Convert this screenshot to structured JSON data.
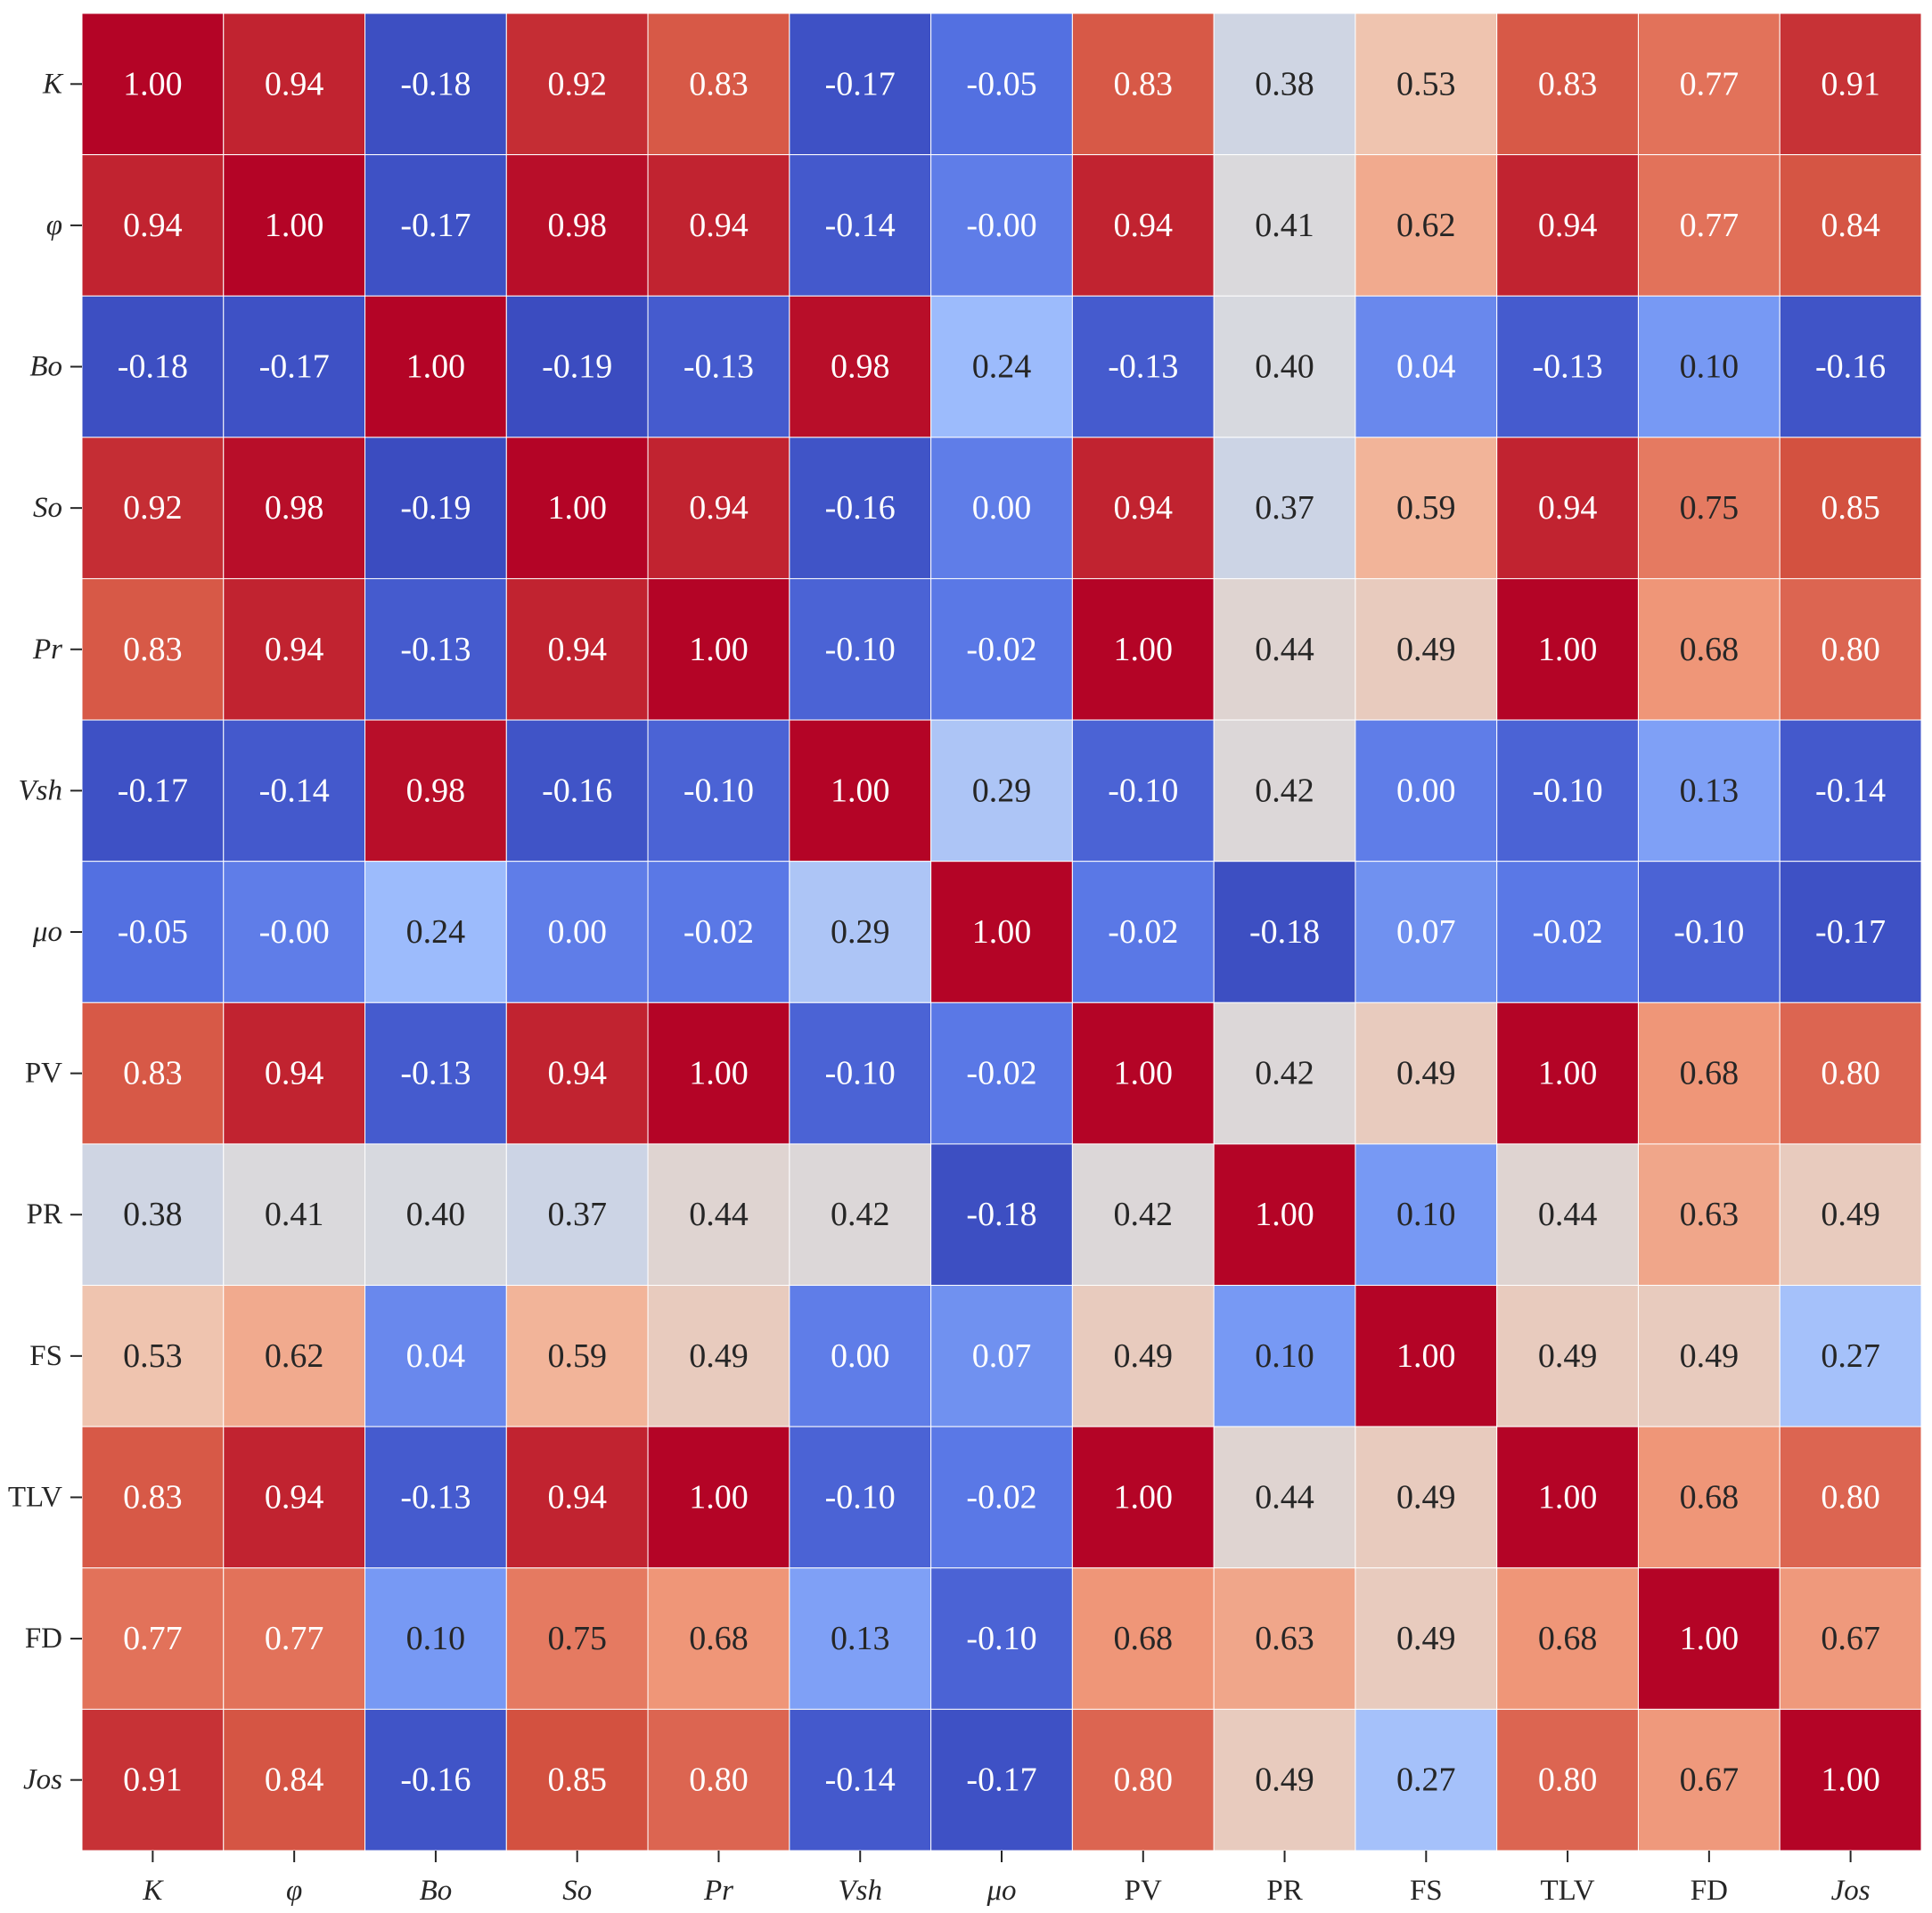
{
  "chart_data": {
    "type": "heatmap",
    "title": "",
    "xlabel": "",
    "ylabel": "",
    "colormap": "coolwarm",
    "value_range": [
      -0.19,
      1.0
    ],
    "value_format": "0.00",
    "colors": {
      "low": "#3b4cc0",
      "mid": "#dddddd",
      "high": "#b40426",
      "gridline": "#ffffff",
      "tick": "#262626",
      "text_dark": "#262626",
      "text_light": "#ffffff"
    },
    "labels": [
      {
        "text": "K",
        "italic": true
      },
      {
        "text": "φ",
        "italic": true
      },
      {
        "text": "Bo",
        "italic": true
      },
      {
        "text": "So",
        "italic": true
      },
      {
        "text": "Pr",
        "italic": true
      },
      {
        "text": "Vsh",
        "italic": true
      },
      {
        "text": "μo",
        "italic": true
      },
      {
        "text": "PV",
        "italic": false
      },
      {
        "text": "PR",
        "italic": false
      },
      {
        "text": "FS",
        "italic": false
      },
      {
        "text": "TLV",
        "italic": false
      },
      {
        "text": "FD",
        "italic": false
      },
      {
        "text": "Jos",
        "italic": true
      }
    ],
    "matrix": [
      [
        1.0,
        0.94,
        -0.18,
        0.92,
        0.83,
        -0.17,
        -0.05,
        0.83,
        0.38,
        0.53,
        0.83,
        0.77,
        0.91
      ],
      [
        0.94,
        1.0,
        -0.17,
        0.98,
        0.94,
        -0.14,
        -0.0,
        0.94,
        0.41,
        0.62,
        0.94,
        0.77,
        0.84
      ],
      [
        -0.18,
        -0.17,
        1.0,
        -0.19,
        -0.13,
        0.98,
        0.24,
        -0.13,
        0.4,
        0.04,
        -0.13,
        0.1,
        -0.16
      ],
      [
        0.92,
        0.98,
        -0.19,
        1.0,
        0.94,
        -0.16,
        0.0,
        0.94,
        0.37,
        0.59,
        0.94,
        0.75,
        0.85
      ],
      [
        0.83,
        0.94,
        -0.13,
        0.94,
        1.0,
        -0.1,
        -0.02,
        1.0,
        0.44,
        0.49,
        1.0,
        0.68,
        0.8
      ],
      [
        -0.17,
        -0.14,
        0.98,
        -0.16,
        -0.1,
        1.0,
        0.29,
        -0.1,
        0.42,
        0.0,
        -0.1,
        0.13,
        -0.14
      ],
      [
        -0.05,
        -0.0,
        0.24,
        0.0,
        -0.02,
        0.29,
        1.0,
        -0.02,
        -0.18,
        0.07,
        -0.02,
        -0.1,
        -0.17
      ],
      [
        0.83,
        0.94,
        -0.13,
        0.94,
        1.0,
        -0.1,
        -0.02,
        1.0,
        0.42,
        0.49,
        1.0,
        0.68,
        0.8
      ],
      [
        0.38,
        0.41,
        0.4,
        0.37,
        0.44,
        0.42,
        -0.18,
        0.42,
        1.0,
        0.1,
        0.44,
        0.63,
        0.49
      ],
      [
        0.53,
        0.62,
        0.04,
        0.59,
        0.49,
        0.0,
        0.07,
        0.49,
        0.1,
        1.0,
        0.49,
        0.49,
        0.27
      ],
      [
        0.83,
        0.94,
        -0.13,
        0.94,
        1.0,
        -0.1,
        -0.02,
        1.0,
        0.44,
        0.49,
        1.0,
        0.68,
        0.8
      ],
      [
        0.77,
        0.77,
        0.1,
        0.75,
        0.68,
        0.13,
        -0.1,
        0.68,
        0.63,
        0.49,
        0.68,
        1.0,
        0.67
      ],
      [
        0.91,
        0.84,
        -0.16,
        0.85,
        0.8,
        -0.14,
        -0.17,
        0.8,
        0.49,
        0.27,
        0.8,
        0.67,
        1.0
      ]
    ],
    "cell_text": [
      [
        "1.00",
        "0.94",
        "-0.18",
        "0.92",
        "0.83",
        "-0.17",
        "-0.05",
        "0.83",
        "0.38",
        "0.53",
        "0.83",
        "0.77",
        "0.91"
      ],
      [
        "0.94",
        "1.00",
        "-0.17",
        "0.98",
        "0.94",
        "-0.14",
        "-0.00",
        "0.94",
        "0.41",
        "0.62",
        "0.94",
        "0.77",
        "0.84"
      ],
      [
        "-0.18",
        "-0.17",
        "1.00",
        "-0.19",
        "-0.13",
        "0.98",
        "0.24",
        "-0.13",
        "0.40",
        "0.04",
        "-0.13",
        "0.10",
        "-0.16"
      ],
      [
        "0.92",
        "0.98",
        "-0.19",
        "1.00",
        "0.94",
        "-0.16",
        "0.00",
        "0.94",
        "0.37",
        "0.59",
        "0.94",
        "0.75",
        "0.85"
      ],
      [
        "0.83",
        "0.94",
        "-0.13",
        "0.94",
        "1.00",
        "-0.10",
        "-0.02",
        "1.00",
        "0.44",
        "0.49",
        "1.00",
        "0.68",
        "0.80"
      ],
      [
        "-0.17",
        "-0.14",
        "0.98",
        "-0.16",
        "-0.10",
        "1.00",
        "0.29",
        "-0.10",
        "0.42",
        "0.00",
        "-0.10",
        "0.13",
        "-0.14"
      ],
      [
        "-0.05",
        "-0.00",
        "0.24",
        "0.00",
        "-0.02",
        "0.29",
        "1.00",
        "-0.02",
        "-0.18",
        "0.07",
        "-0.02",
        "-0.10",
        "-0.17"
      ],
      [
        "0.83",
        "0.94",
        "-0.13",
        "0.94",
        "1.00",
        "-0.10",
        "-0.02",
        "1.00",
        "0.42",
        "0.49",
        "1.00",
        "0.68",
        "0.80"
      ],
      [
        "0.38",
        "0.41",
        "0.40",
        "0.37",
        "0.44",
        "0.42",
        "-0.18",
        "0.42",
        "1.00",
        "0.10",
        "0.44",
        "0.63",
        "0.49"
      ],
      [
        "0.53",
        "0.62",
        "0.04",
        "0.59",
        "0.49",
        "0.00",
        "0.07",
        "0.49",
        "0.10",
        "1.00",
        "0.49",
        "0.49",
        "0.27"
      ],
      [
        "0.83",
        "0.94",
        "-0.13",
        "0.94",
        "1.00",
        "-0.10",
        "-0.02",
        "1.00",
        "0.44",
        "0.49",
        "1.00",
        "0.68",
        "0.80"
      ],
      [
        "0.77",
        "0.77",
        "0.10",
        "0.75",
        "0.68",
        "0.13",
        "-0.10",
        "0.68",
        "0.63",
        "0.49",
        "0.68",
        "1.00",
        "0.67"
      ],
      [
        "0.91",
        "0.84",
        "-0.16",
        "0.85",
        "0.80",
        "-0.14",
        "-0.17",
        "0.80",
        "0.49",
        "0.27",
        "0.80",
        "0.67",
        "1.00"
      ]
    ]
  }
}
